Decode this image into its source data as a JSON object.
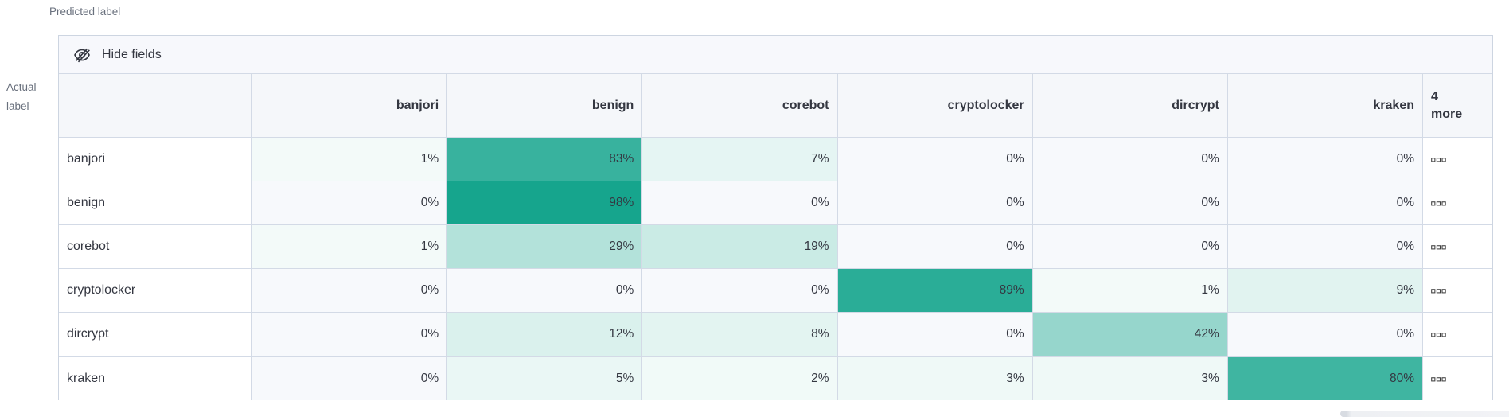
{
  "axes": {
    "predicted": "Predicted label",
    "actual_line1": "Actual",
    "actual_line2": "label"
  },
  "toolbar": {
    "hide_fields_label": "Hide fields"
  },
  "chart_data": {
    "type": "heatmap",
    "xlabel": "Predicted label",
    "ylabel": "Actual label",
    "x_categories": [
      "banjori",
      "benign",
      "corebot",
      "cryptolocker",
      "dircrypt",
      "kraken"
    ],
    "y_categories": [
      "banjori",
      "benign",
      "corebot",
      "cryptolocker",
      "dircrypt",
      "kraken"
    ],
    "extra_column_label": "4 more",
    "value_suffix": "%",
    "values_percent": [
      [
        1,
        83,
        7,
        0,
        0,
        0
      ],
      [
        0,
        98,
        0,
        0,
        0,
        0
      ],
      [
        1,
        29,
        19,
        0,
        0,
        0
      ],
      [
        0,
        0,
        0,
        89,
        1,
        9
      ],
      [
        0,
        12,
        8,
        0,
        42,
        0
      ],
      [
        0,
        5,
        2,
        3,
        3,
        80
      ]
    ],
    "colors": {
      "max": "#11a38b",
      "zero": "#f7f9fc",
      "text": "#343741"
    }
  }
}
